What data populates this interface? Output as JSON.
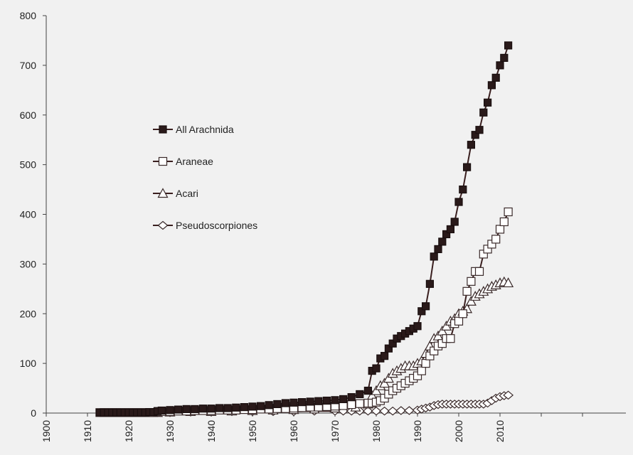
{
  "chart_data": {
    "type": "line",
    "title": "",
    "xlabel": "",
    "ylabel": "",
    "xlim": [
      1900,
      2030
    ],
    "ylim": [
      0,
      800
    ],
    "x_ticks": [
      1900,
      1910,
      1920,
      1930,
      1940,
      1950,
      1960,
      1970,
      1980,
      1990,
      2000,
      2010
    ],
    "y_ticks": [
      0,
      100,
      200,
      300,
      400,
      500,
      600,
      700,
      800
    ],
    "grid": false,
    "legend": "inside-left",
    "series": [
      {
        "name": "All Arachnida",
        "marker": "square-filled",
        "x": [
          1913,
          1914,
          1915,
          1916,
          1917,
          1918,
          1919,
          1920,
          1921,
          1922,
          1923,
          1924,
          1925,
          1926,
          1927,
          1928,
          1930,
          1932,
          1934,
          1936,
          1938,
          1940,
          1942,
          1944,
          1946,
          1948,
          1950,
          1952,
          1954,
          1956,
          1958,
          1960,
          1962,
          1964,
          1966,
          1968,
          1970,
          1972,
          1974,
          1976,
          1978,
          1979,
          1980,
          1981,
          1982,
          1983,
          1984,
          1985,
          1986,
          1987,
          1988,
          1989,
          1990,
          1991,
          1992,
          1993,
          1994,
          1995,
          1996,
          1997,
          1998,
          1999,
          2000,
          2001,
          2002,
          2003,
          2004,
          2005,
          2006,
          2007,
          2008,
          2009,
          2010,
          2011,
          2012
        ],
        "values": [
          1,
          1,
          1,
          1,
          1,
          1,
          1,
          1,
          1,
          1,
          1,
          1,
          2,
          2,
          4,
          5,
          6,
          7,
          8,
          8,
          9,
          9,
          10,
          10,
          11,
          12,
          13,
          14,
          16,
          18,
          20,
          21,
          22,
          23,
          24,
          25,
          26,
          28,
          32,
          38,
          45,
          85,
          90,
          110,
          115,
          130,
          140,
          150,
          155,
          160,
          165,
          170,
          175,
          205,
          215,
          260,
          315,
          330,
          345,
          360,
          370,
          385,
          425,
          450,
          495,
          540,
          560,
          570,
          605,
          625,
          660,
          675,
          700,
          715,
          740
        ]
      },
      {
        "name": "Araneae",
        "marker": "square-open",
        "x": [
          1913,
          1914,
          1915,
          1916,
          1917,
          1918,
          1919,
          1920,
          1921,
          1922,
          1923,
          1924,
          1925,
          1926,
          1927,
          1928,
          1930,
          1932,
          1934,
          1936,
          1938,
          1940,
          1942,
          1944,
          1946,
          1948,
          1950,
          1952,
          1954,
          1956,
          1958,
          1960,
          1962,
          1964,
          1966,
          1968,
          1970,
          1972,
          1974,
          1976,
          1978,
          1979,
          1980,
          1981,
          1982,
          1983,
          1984,
          1985,
          1986,
          1987,
          1988,
          1989,
          1990,
          1991,
          1992,
          1993,
          1994,
          1995,
          1996,
          1997,
          1998,
          1999,
          2000,
          2001,
          2002,
          2003,
          2004,
          2005,
          2006,
          2007,
          2008,
          2009,
          2010,
          2011,
          2012
        ],
        "values": [
          1,
          1,
          1,
          1,
          1,
          1,
          1,
          1,
          1,
          1,
          1,
          1,
          1,
          1,
          2,
          3,
          3,
          4,
          4,
          5,
          5,
          5,
          6,
          6,
          6,
          7,
          7,
          8,
          8,
          9,
          9,
          10,
          11,
          12,
          12,
          13,
          14,
          15,
          17,
          19,
          20,
          20,
          22,
          25,
          30,
          38,
          45,
          50,
          55,
          60,
          65,
          70,
          75,
          85,
          100,
          115,
          125,
          135,
          140,
          150,
          150,
          180,
          185,
          200,
          245,
          265,
          285,
          285,
          320,
          330,
          340,
          350,
          370,
          385,
          405
        ]
      },
      {
        "name": "Acari",
        "marker": "triangle-open",
        "x": [
          1927,
          1930,
          1935,
          1940,
          1945,
          1950,
          1955,
          1960,
          1965,
          1970,
          1975,
          1978,
          1979,
          1980,
          1981,
          1982,
          1983,
          1984,
          1985,
          1986,
          1987,
          1988,
          1989,
          1990,
          1991,
          1992,
          1993,
          1994,
          1995,
          1996,
          1997,
          1998,
          1999,
          2000,
          2001,
          2002,
          2003,
          2004,
          2005,
          2006,
          2007,
          2008,
          2009,
          2010,
          2011,
          2012
        ],
        "values": [
          1,
          2,
          3,
          3,
          4,
          5,
          6,
          7,
          8,
          10,
          12,
          18,
          35,
          45,
          55,
          60,
          70,
          80,
          85,
          90,
          95,
          95,
          95,
          100,
          105,
          120,
          135,
          150,
          155,
          165,
          175,
          185,
          190,
          200,
          205,
          210,
          225,
          235,
          240,
          245,
          250,
          255,
          258,
          262,
          264,
          262
        ]
      },
      {
        "name": "Pseudoscorpiones",
        "marker": "diamond-open",
        "x": [
          1927,
          1930,
          1935,
          1940,
          1945,
          1950,
          1955,
          1960,
          1965,
          1970,
          1972,
          1974,
          1976,
          1978,
          1980,
          1982,
          1984,
          1986,
          1988,
          1990,
          1991,
          1992,
          1993,
          1994,
          1995,
          1996,
          1997,
          1998,
          1999,
          2000,
          2001,
          2002,
          2003,
          2004,
          2005,
          2006,
          2007,
          2008,
          2009,
          2010,
          2011,
          2012
        ],
        "values": [
          1,
          1,
          2,
          2,
          3,
          3,
          3,
          3,
          4,
          4,
          4,
          4,
          4,
          4,
          4,
          4,
          4,
          5,
          5,
          6,
          8,
          10,
          12,
          15,
          17,
          18,
          18,
          18,
          18,
          18,
          18,
          18,
          18,
          18,
          18,
          18,
          20,
          25,
          30,
          33,
          35,
          36
        ]
      }
    ]
  }
}
